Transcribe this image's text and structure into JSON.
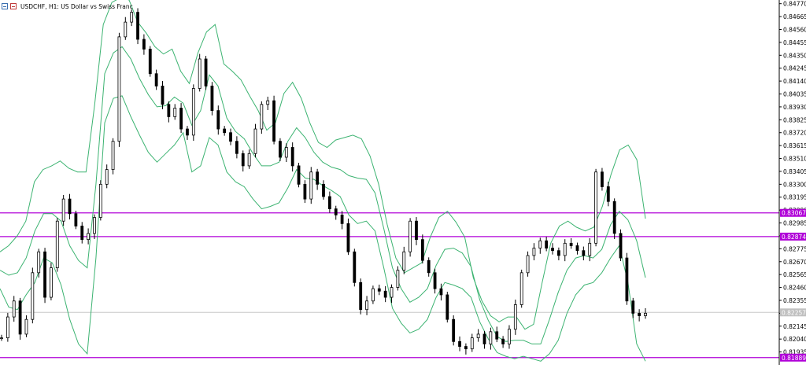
{
  "header": {
    "symbol": "USDCHF",
    "timeframe": "H1",
    "description": "US Dollar vs Swiss Franc",
    "full_title": "USDCHF, H1:  US Dollar vs Swiss Franc"
  },
  "colors": {
    "background": "#ffffff",
    "candle": "#000000",
    "bands": "#3cb371",
    "hline": "#b000d8",
    "hline_label_bg": "#b000d8",
    "hline_label_text": "#ffffff",
    "bid_line": "#c8c8c8",
    "bid_label_bg": "#c0c0c0",
    "axis_text": "#000000"
  },
  "chart_data": {
    "type": "candlestick",
    "ylim": [
      0.8183,
      0.848
    ],
    "yticks": [
      "0.84770",
      "0.84665",
      "0.84560",
      "0.84455",
      "0.84350",
      "0.84245",
      "0.84140",
      "0.84035",
      "0.83930",
      "0.83825",
      "0.83720",
      "0.83615",
      "0.83510",
      "0.83405",
      "0.83300",
      "0.83195",
      "0.83090",
      "0.82985",
      "0.82880",
      "0.82775",
      "0.82670",
      "0.82565",
      "0.82460",
      "0.82355",
      "0.82250",
      "0.82145",
      "0.82040",
      "0.81935"
    ],
    "horizontal_lines": [
      {
        "price": 0.83067,
        "label": "0.83067"
      },
      {
        "price": 0.82874,
        "label": "0.82874"
      },
      {
        "price": 0.81889,
        "label": "0.81889"
      }
    ],
    "bid_line": {
      "price": 0.82257,
      "label": "0.82257"
    },
    "close_series": [
      0.8205,
      0.8222,
      0.8235,
      0.8208,
      0.822,
      0.8258,
      0.8275,
      0.8238,
      0.8262,
      0.83,
      0.8318,
      0.8306,
      0.8296,
      0.8285,
      0.829,
      0.8303,
      0.833,
      0.8342,
      0.8365,
      0.845,
      0.8462,
      0.847,
      0.8448,
      0.844,
      0.842,
      0.841,
      0.8395,
      0.8385,
      0.8392,
      0.8375,
      0.837,
      0.8408,
      0.8432,
      0.841,
      0.839,
      0.8375,
      0.8372,
      0.8365,
      0.8355,
      0.8345,
      0.8355,
      0.8375,
      0.8395,
      0.8398,
      0.8365,
      0.8352,
      0.836,
      0.8345,
      0.833,
      0.8318,
      0.834,
      0.833,
      0.832,
      0.831,
      0.8305,
      0.8298,
      0.8275,
      0.825,
      0.8228,
      0.8235,
      0.8245,
      0.8243,
      0.8238,
      0.8246,
      0.826,
      0.8275,
      0.83,
      0.8285,
      0.8268,
      0.8258,
      0.8245,
      0.824,
      0.822,
      0.8202,
      0.8198,
      0.8196,
      0.8205,
      0.8208,
      0.82,
      0.821,
      0.8204,
      0.82,
      0.8212,
      0.8232,
      0.8258,
      0.8272,
      0.8278,
      0.8284,
      0.8278,
      0.8276,
      0.8272,
      0.8282,
      0.828,
      0.8276,
      0.8272,
      0.8282,
      0.834,
      0.8328,
      0.8316,
      0.829,
      0.827,
      0.8235,
      0.8225,
      0.8223,
      0.8225
    ],
    "upper_band": [
      0.8275,
      0.828,
      0.8288,
      0.83,
      0.8332,
      0.8342,
      0.8345,
      0.8349,
      0.8343,
      0.834,
      0.834,
      0.8395,
      0.846,
      0.8478,
      0.8482,
      0.848,
      0.8462,
      0.8453,
      0.8442,
      0.8436,
      0.844,
      0.8422,
      0.8412,
      0.8437,
      0.8454,
      0.846,
      0.8428,
      0.8422,
      0.8415,
      0.8402,
      0.839,
      0.8374,
      0.838,
      0.8404,
      0.8413,
      0.84,
      0.838,
      0.8364,
      0.836,
      0.8366,
      0.8368,
      0.837,
      0.8367,
      0.8353,
      0.833,
      0.8297,
      0.827,
      0.8258,
      0.8262,
      0.8266,
      0.8287,
      0.8303,
      0.8308,
      0.8299,
      0.8287,
      0.8254,
      0.8235,
      0.8223,
      0.8218,
      0.8222,
      0.8222,
      0.8212,
      0.8216,
      0.825,
      0.8282,
      0.8296,
      0.83,
      0.8295,
      0.8292,
      0.8295,
      0.8312,
      0.8338,
      0.8358,
      0.8362,
      0.835,
      0.8302
    ],
    "middle_band": [
      0.826,
      0.8256,
      0.8258,
      0.827,
      0.8292,
      0.8306,
      0.8306,
      0.83,
      0.828,
      0.8268,
      0.8262,
      0.833,
      0.842,
      0.8437,
      0.8442,
      0.8432,
      0.8416,
      0.8403,
      0.8393,
      0.8394,
      0.8401,
      0.8396,
      0.8378,
      0.839,
      0.8419,
      0.841,
      0.8384,
      0.8373,
      0.8367,
      0.8355,
      0.8345,
      0.8345,
      0.8348,
      0.8365,
      0.8376,
      0.8368,
      0.8356,
      0.8348,
      0.8344,
      0.8342,
      0.8337,
      0.8335,
      0.8334,
      0.8323,
      0.8294,
      0.8262,
      0.8245,
      0.8234,
      0.8238,
      0.8245,
      0.8264,
      0.8277,
      0.8278,
      0.8274,
      0.8263,
      0.8236,
      0.8219,
      0.8206,
      0.8202,
      0.8203,
      0.8203,
      0.82,
      0.82,
      0.822,
      0.8242,
      0.826,
      0.827,
      0.8272,
      0.827,
      0.8277,
      0.8297,
      0.8308,
      0.8301,
      0.8284,
      0.8254
    ],
    "lower_band": [
      0.8245,
      0.823,
      0.8228,
      0.824,
      0.825,
      0.827,
      0.8266,
      0.8248,
      0.822,
      0.82,
      0.8192,
      0.827,
      0.838,
      0.84,
      0.8402,
      0.8385,
      0.837,
      0.8356,
      0.8348,
      0.8355,
      0.8362,
      0.8372,
      0.834,
      0.8345,
      0.8368,
      0.8362,
      0.834,
      0.8332,
      0.8328,
      0.8318,
      0.831,
      0.8312,
      0.8315,
      0.8327,
      0.8342,
      0.8335,
      0.8334,
      0.8329,
      0.8325,
      0.832,
      0.8305,
      0.8298,
      0.83,
      0.8292,
      0.8262,
      0.8229,
      0.8217,
      0.8209,
      0.8212,
      0.822,
      0.8238,
      0.825,
      0.8248,
      0.8245,
      0.8238,
      0.8218,
      0.8204,
      0.8193,
      0.819,
      0.8188,
      0.819,
      0.8188,
      0.8186,
      0.8192,
      0.8203,
      0.8225,
      0.824,
      0.8248,
      0.825,
      0.8258,
      0.827,
      0.828,
      0.825,
      0.82,
      0.8186
    ]
  }
}
